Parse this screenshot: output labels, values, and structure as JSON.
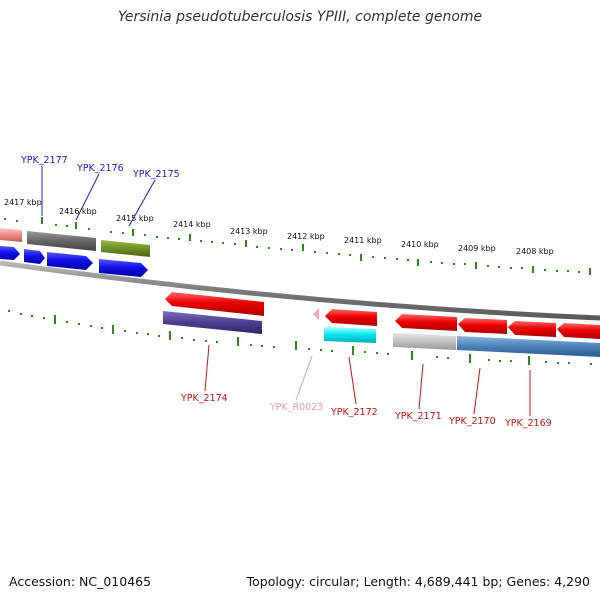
{
  "title": "Yersinia pseudotuberculosis YPIII, complete genome",
  "footer": {
    "accession": "Accession: NC_010465",
    "topology": "Topology: circular; Length: 4,689,441 bp; Genes: 4,290"
  },
  "ruler_labels": [
    "2417 kbp",
    "2416 kbp",
    "2415 kbp",
    "2414 kbp",
    "2413 kbp",
    "2412 kbp",
    "2411 kbp",
    "2410 kbp",
    "2409 kbp",
    "2408 kbp"
  ],
  "gene_labels": {
    "YPK_2177": "YPK_2177",
    "YPK_2176": "YPK_2176",
    "YPK_2175": "YPK_2175",
    "YPK_2174": "YPK_2174",
    "YPK_R0023": "YPK_R0023",
    "YPK_2172": "YPK_2172",
    "YPK_2171": "YPK_2171",
    "YPK_2170": "YPK_2170",
    "YPK_2169": "YPK_2169"
  },
  "colors": {
    "forward_label": "#1a1acc",
    "reverse_label": "#cc1111",
    "rna_label": "#e89ab6",
    "ruler": "#2a8a1a",
    "backbone": "#888888"
  }
}
